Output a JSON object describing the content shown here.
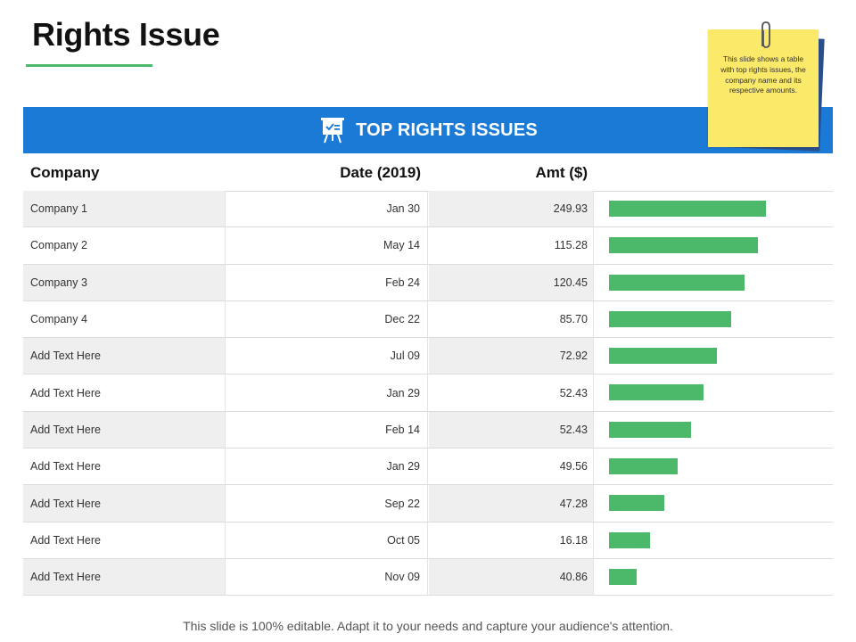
{
  "slide": {
    "title": "Rights Issue",
    "banner_title": "TOP RIGHTS ISSUES",
    "banner_icon": "presentation-board-icon",
    "note": "This slide shows a table with top rights issues, the company name and its respective amounts.",
    "footer": "This slide is 100% editable. Adapt it to your needs and capture your audience's attention."
  },
  "colors": {
    "accent_green": "#4cb86a",
    "banner_blue": "#1a7ad6",
    "sticky_yellow": "#fbe96a"
  },
  "table": {
    "headers": {
      "company": "Company",
      "date": "Date (2019)",
      "amount": "Amt ($)"
    },
    "rows": [
      {
        "company": "Company 1",
        "date": "Jan 30",
        "amount": "249.93",
        "bar_fraction": 1.0
      },
      {
        "company": "Company 2",
        "date": "May 14",
        "amount": "115.28",
        "bar_fraction": 0.95
      },
      {
        "company": "Company 3",
        "date": "Feb 24",
        "amount": "120.45",
        "bar_fraction": 0.865
      },
      {
        "company": "Company 4",
        "date": "Dec 22",
        "amount": "85.70",
        "bar_fraction": 0.78
      },
      {
        "company": "Add Text Here",
        "date": "Jul 09",
        "amount": "72.92",
        "bar_fraction": 0.69
      },
      {
        "company": "Add Text Here",
        "date": "Jan 29",
        "amount": "52.43",
        "bar_fraction": 0.605
      },
      {
        "company": "Add Text Here",
        "date": "Feb 14",
        "amount": "52.43",
        "bar_fraction": 0.52
      },
      {
        "company": "Add Text Here",
        "date": "Jan 29",
        "amount": "49.56",
        "bar_fraction": 0.435
      },
      {
        "company": "Add Text Here",
        "date": "Sep 22",
        "amount": "47.28",
        "bar_fraction": 0.35
      },
      {
        "company": "Add Text Here",
        "date": "Oct 05",
        "amount": "16.18",
        "bar_fraction": 0.26
      },
      {
        "company": "Add Text Here",
        "date": "Nov 09",
        "amount": "40.86",
        "bar_fraction": 0.175
      }
    ]
  }
}
